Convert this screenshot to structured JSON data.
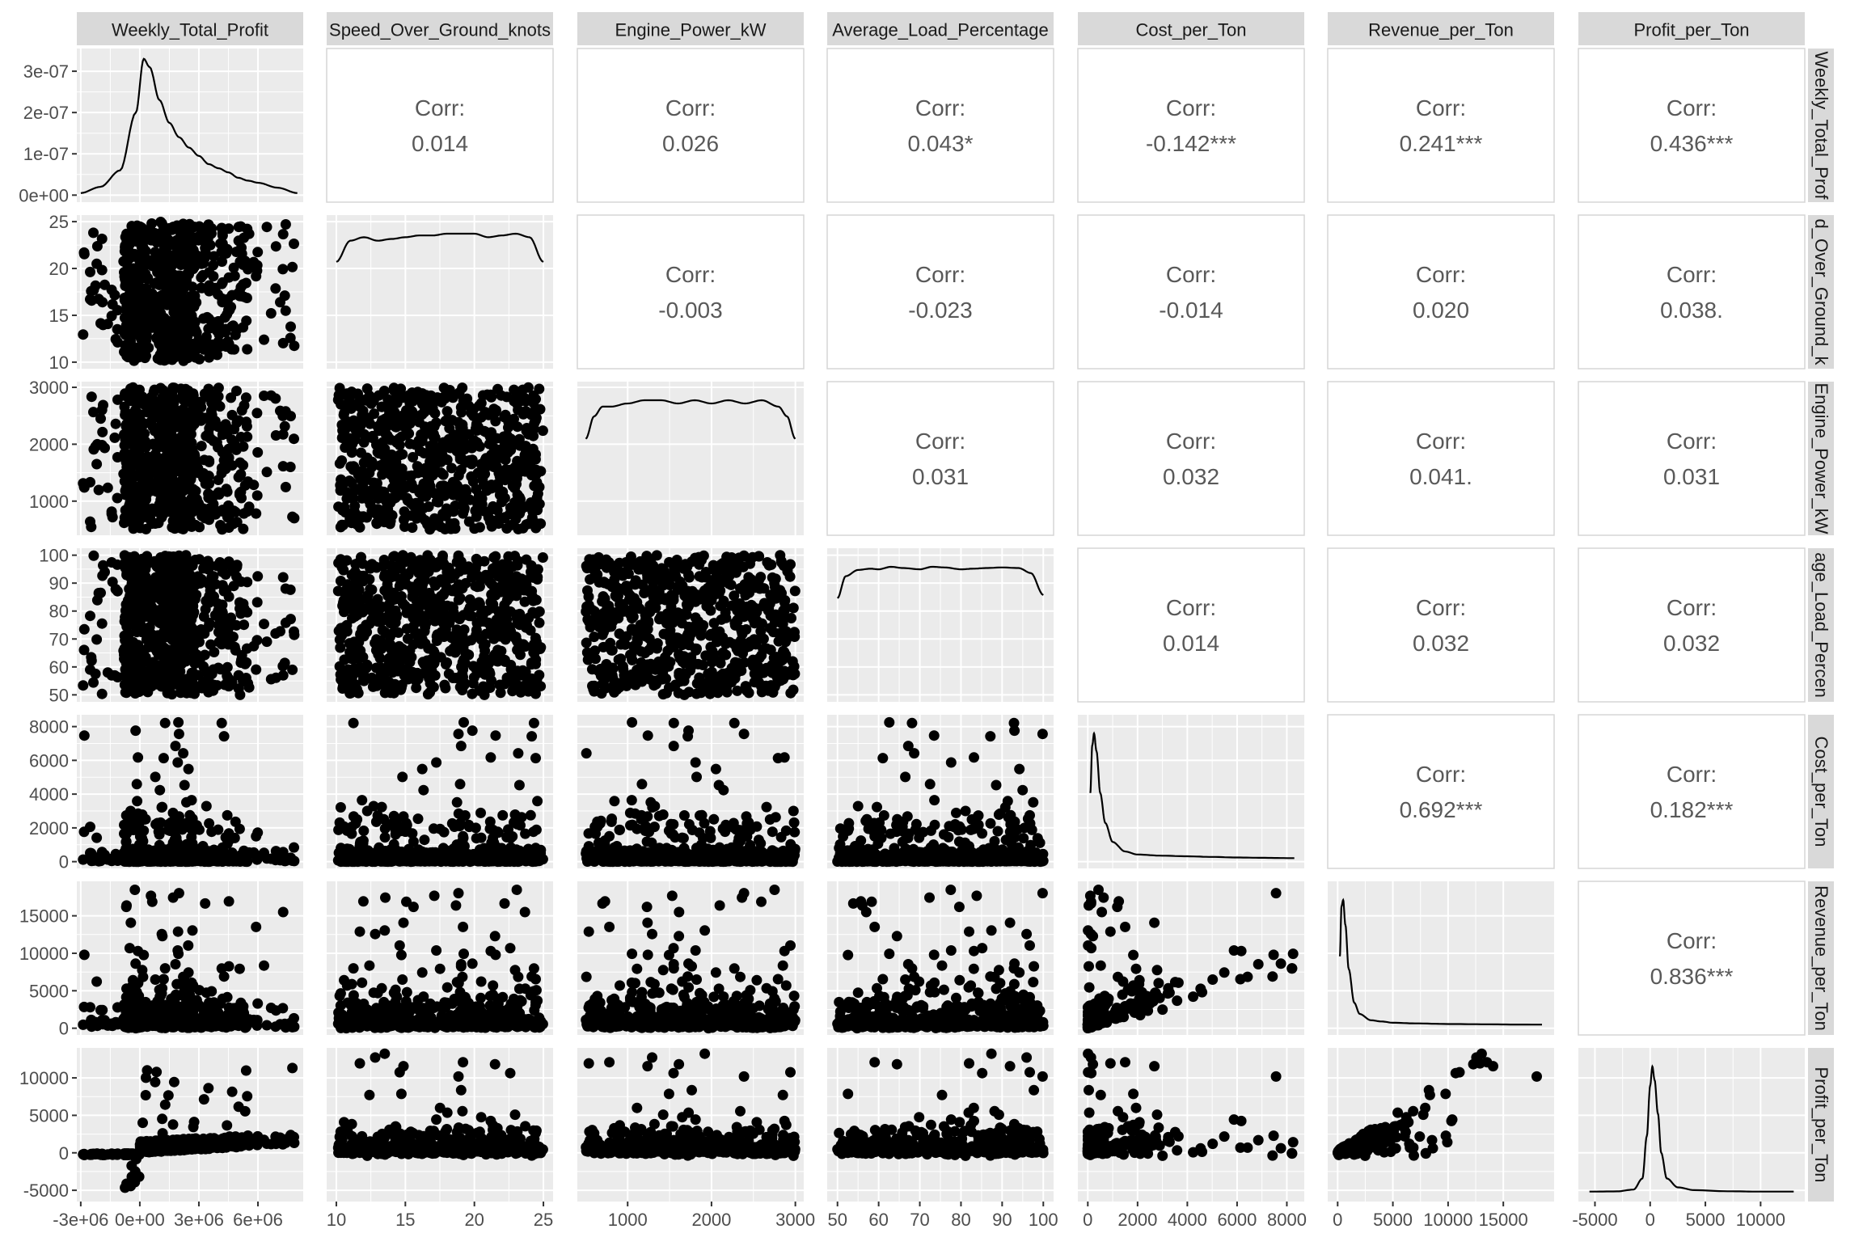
{
  "chart_data": {
    "type": "scatter",
    "title": "",
    "variables": [
      "Weekly_Total_Profit",
      "Speed_Over_Ground_knots",
      "Engine_Power_kW",
      "Average_Load_Percentage",
      "Cost_per_Ton",
      "Revenue_per_Ton",
      "Profit_per_Ton"
    ],
    "strip_labels_top": [
      "Weekly_Total_Profit",
      "Speed_Over_Ground_knots",
      "Engine_Power_kW",
      "Average_Load_Percentage",
      "Cost_per_Ton",
      "Revenue_per_Ton",
      "Profit_per_Ton"
    ],
    "strip_labels_right": [
      "Weekly_Total_Prof",
      "d_Over_Ground_k",
      "Engine_Power_kW",
      "age_Load_Percen",
      "Cost_per_Ton",
      "Revenue_per_Ton",
      "Profit_per_Ton"
    ],
    "x_ticks": [
      {
        "values": [
          -3000000,
          0,
          3000000,
          6000000
        ],
        "labels": [
          "-3e+06",
          "0e+00",
          "3e+06",
          "6e+06"
        ],
        "range": [
          -3200000,
          8300000
        ]
      },
      {
        "values": [
          10,
          15,
          20,
          25
        ],
        "labels": [
          "10",
          "15",
          "20",
          "25"
        ],
        "range": [
          9.3,
          25.7
        ]
      },
      {
        "values": [
          1000,
          2000,
          3000
        ],
        "labels": [
          "1000",
          "2000",
          "3000"
        ],
        "range": [
          400,
          3100
        ]
      },
      {
        "values": [
          50,
          60,
          70,
          80,
          90,
          100
        ],
        "labels": [
          "50",
          "60",
          "70",
          "80",
          "90",
          "100"
        ],
        "range": [
          47.5,
          102.5
        ]
      },
      {
        "values": [
          0,
          2000,
          4000,
          6000,
          8000
        ],
        "labels": [
          "0",
          "2000",
          "4000",
          "6000",
          "8000"
        ],
        "range": [
          -400,
          8700
        ]
      },
      {
        "values": [
          0,
          5000,
          10000,
          15000
        ],
        "labels": [
          "0",
          "5000",
          "10000",
          "15000"
        ],
        "range": [
          -900,
          19600
        ]
      },
      {
        "values": [
          -5000,
          0,
          5000,
          10000
        ],
        "labels": [
          "-5000",
          "0",
          "5000",
          "10000"
        ],
        "range": [
          -6500,
          14000
        ]
      }
    ],
    "y_ticks": [
      {
        "values": [
          0,
          1e-07,
          2e-07,
          3e-07
        ],
        "labels": [
          "0e+00",
          "1e-07",
          "2e-07",
          "3e-07"
        ],
        "range": [
          -1.7e-08,
          3.55e-07
        ]
      },
      {
        "values": [
          10,
          15,
          20,
          25
        ],
        "labels": [
          "10",
          "15",
          "20",
          "25"
        ],
        "range": [
          9.3,
          25.7
        ]
      },
      {
        "values": [
          1000,
          2000,
          3000
        ],
        "labels": [
          "1000",
          "2000",
          "3000"
        ],
        "range": [
          400,
          3100
        ]
      },
      {
        "values": [
          50,
          60,
          70,
          80,
          90,
          100
        ],
        "labels": [
          "50",
          "60",
          "70",
          "80",
          "90",
          "100"
        ],
        "range": [
          47.5,
          102.5
        ]
      },
      {
        "values": [
          0,
          2000,
          4000,
          6000,
          8000
        ],
        "labels": [
          "0",
          "2000",
          "4000",
          "6000",
          "8000"
        ],
        "range": [
          -400,
          8700
        ]
      },
      {
        "values": [
          0,
          5000,
          10000,
          15000
        ],
        "labels": [
          "0",
          "5000",
          "10000",
          "15000"
        ],
        "range": [
          -900,
          19600
        ]
      },
      {
        "values": [
          -5000,
          0,
          5000,
          10000
        ],
        "labels": [
          "-5000",
          "0",
          "5000",
          "10000"
        ],
        "range": [
          -6500,
          14000
        ]
      }
    ],
    "correlations": [
      {
        "row": 0,
        "col": 1,
        "label": "Corr:",
        "value": "0.014"
      },
      {
        "row": 0,
        "col": 2,
        "label": "Corr:",
        "value": "0.026"
      },
      {
        "row": 0,
        "col": 3,
        "label": "Corr:",
        "value": "0.043*"
      },
      {
        "row": 0,
        "col": 4,
        "label": "Corr:",
        "value": "-0.142***"
      },
      {
        "row": 0,
        "col": 5,
        "label": "Corr:",
        "value": "0.241***"
      },
      {
        "row": 0,
        "col": 6,
        "label": "Corr:",
        "value": "0.436***"
      },
      {
        "row": 1,
        "col": 2,
        "label": "Corr:",
        "value": "-0.003"
      },
      {
        "row": 1,
        "col": 3,
        "label": "Corr:",
        "value": "-0.023"
      },
      {
        "row": 1,
        "col": 4,
        "label": "Corr:",
        "value": "-0.014"
      },
      {
        "row": 1,
        "col": 5,
        "label": "Corr:",
        "value": "0.020"
      },
      {
        "row": 1,
        "col": 6,
        "label": "Corr:",
        "value": "0.038."
      },
      {
        "row": 2,
        "col": 3,
        "label": "Corr:",
        "value": "0.031"
      },
      {
        "row": 2,
        "col": 4,
        "label": "Corr:",
        "value": "0.032"
      },
      {
        "row": 2,
        "col": 5,
        "label": "Corr:",
        "value": "0.041."
      },
      {
        "row": 2,
        "col": 6,
        "label": "Corr:",
        "value": "0.031"
      },
      {
        "row": 3,
        "col": 4,
        "label": "Corr:",
        "value": "0.014"
      },
      {
        "row": 3,
        "col": 5,
        "label": "Corr:",
        "value": "0.032"
      },
      {
        "row": 3,
        "col": 6,
        "label": "Corr:",
        "value": "0.032"
      },
      {
        "row": 4,
        "col": 5,
        "label": "Corr:",
        "value": "0.692***"
      },
      {
        "row": 4,
        "col": 6,
        "label": "Corr:",
        "value": "0.182***"
      },
      {
        "row": 5,
        "col": 6,
        "label": "Corr:",
        "value": "0.836***"
      }
    ],
    "densities": [
      {
        "var": 0,
        "x": [
          -3000000,
          -2000000,
          -1000000,
          -200000,
          200000,
          500000,
          1000000,
          1500000,
          2000000,
          2500000,
          3000000,
          3500000,
          4000000,
          4500000,
          5000000,
          5500000,
          6000000,
          7000000,
          8000000
        ],
        "y": [
          5e-09,
          2e-08,
          6e-08,
          2e-07,
          3.3e-07,
          3.1e-07,
          2.3e-07,
          1.75e-07,
          1.4e-07,
          1.15e-07,
          9.5e-08,
          7.5e-08,
          6.5e-08,
          5.5e-08,
          4.2e-08,
          3.5e-08,
          3e-08,
          1.8e-08,
          5e-09
        ]
      },
      {
        "var": 1,
        "x": [
          10,
          11,
          12,
          13,
          14,
          15,
          16,
          17,
          18,
          19,
          20,
          21,
          22,
          23,
          24,
          25
        ],
        "y": [
          0.055,
          0.067,
          0.069,
          0.067,
          0.068,
          0.069,
          0.07,
          0.07,
          0.071,
          0.071,
          0.071,
          0.069,
          0.07,
          0.071,
          0.069,
          0.055
        ]
      },
      {
        "var": 2,
        "x": [
          500,
          600,
          700,
          800,
          1000,
          1200,
          1400,
          1600,
          1800,
          2000,
          2200,
          2400,
          2600,
          2800,
          2900,
          3000
        ],
        "y": [
          0.00027,
          0.00034,
          0.00037,
          0.00037,
          0.00038,
          0.00039,
          0.00039,
          0.00038,
          0.00039,
          0.00038,
          0.00039,
          0.00038,
          0.00039,
          0.00037,
          0.00034,
          0.00027
        ]
      },
      {
        "var": 3,
        "x": [
          50,
          52,
          55,
          58,
          60,
          63,
          66,
          70,
          73,
          76,
          80,
          83,
          86,
          90,
          94,
          97,
          100
        ],
        "y": [
          0.015,
          0.0185,
          0.0195,
          0.0197,
          0.0196,
          0.02,
          0.0198,
          0.0196,
          0.02,
          0.0199,
          0.0196,
          0.0197,
          0.0198,
          0.0199,
          0.0198,
          0.019,
          0.0155
        ]
      },
      {
        "var": 4,
        "x": [
          100,
          180,
          250,
          350,
          500,
          700,
          1000,
          1500,
          2000,
          3000,
          4000,
          5000,
          6000,
          7000,
          8000,
          8300
        ],
        "y": [
          0.0011,
          0.0019,
          0.0021,
          0.0018,
          0.0011,
          0.0006,
          0.00028,
          0.00012,
          7e-05,
          5e-05,
          4e-05,
          3e-05,
          2e-05,
          1.5e-05,
          1e-05,
          1e-05
        ]
      },
      {
        "var": 5,
        "x": [
          200,
          350,
          500,
          700,
          1000,
          1500,
          2000,
          3000,
          4000,
          5000,
          7000,
          10000,
          13000,
          16000,
          18500
        ],
        "y": [
          0.00055,
          0.00095,
          0.001,
          0.0008,
          0.00045,
          0.00018,
          9e-05,
          4e-05,
          3e-05,
          2e-05,
          1.5e-05,
          1e-05,
          8e-06,
          6e-06,
          5e-06
        ]
      },
      {
        "var": 6,
        "x": [
          -5500,
          -3000,
          -1500,
          -700,
          -300,
          0,
          200,
          400,
          700,
          1000,
          1500,
          2500,
          4000,
          7000,
          10000,
          13000
        ],
        "y": [
          2e-06,
          4e-06,
          2e-05,
          0.00012,
          0.0005,
          0.00095,
          0.00112,
          0.001,
          0.0007,
          0.00035,
          0.00012,
          4e-05,
          1.5e-05,
          5e-06,
          2e-06,
          2e-06
        ]
      }
    ]
  }
}
